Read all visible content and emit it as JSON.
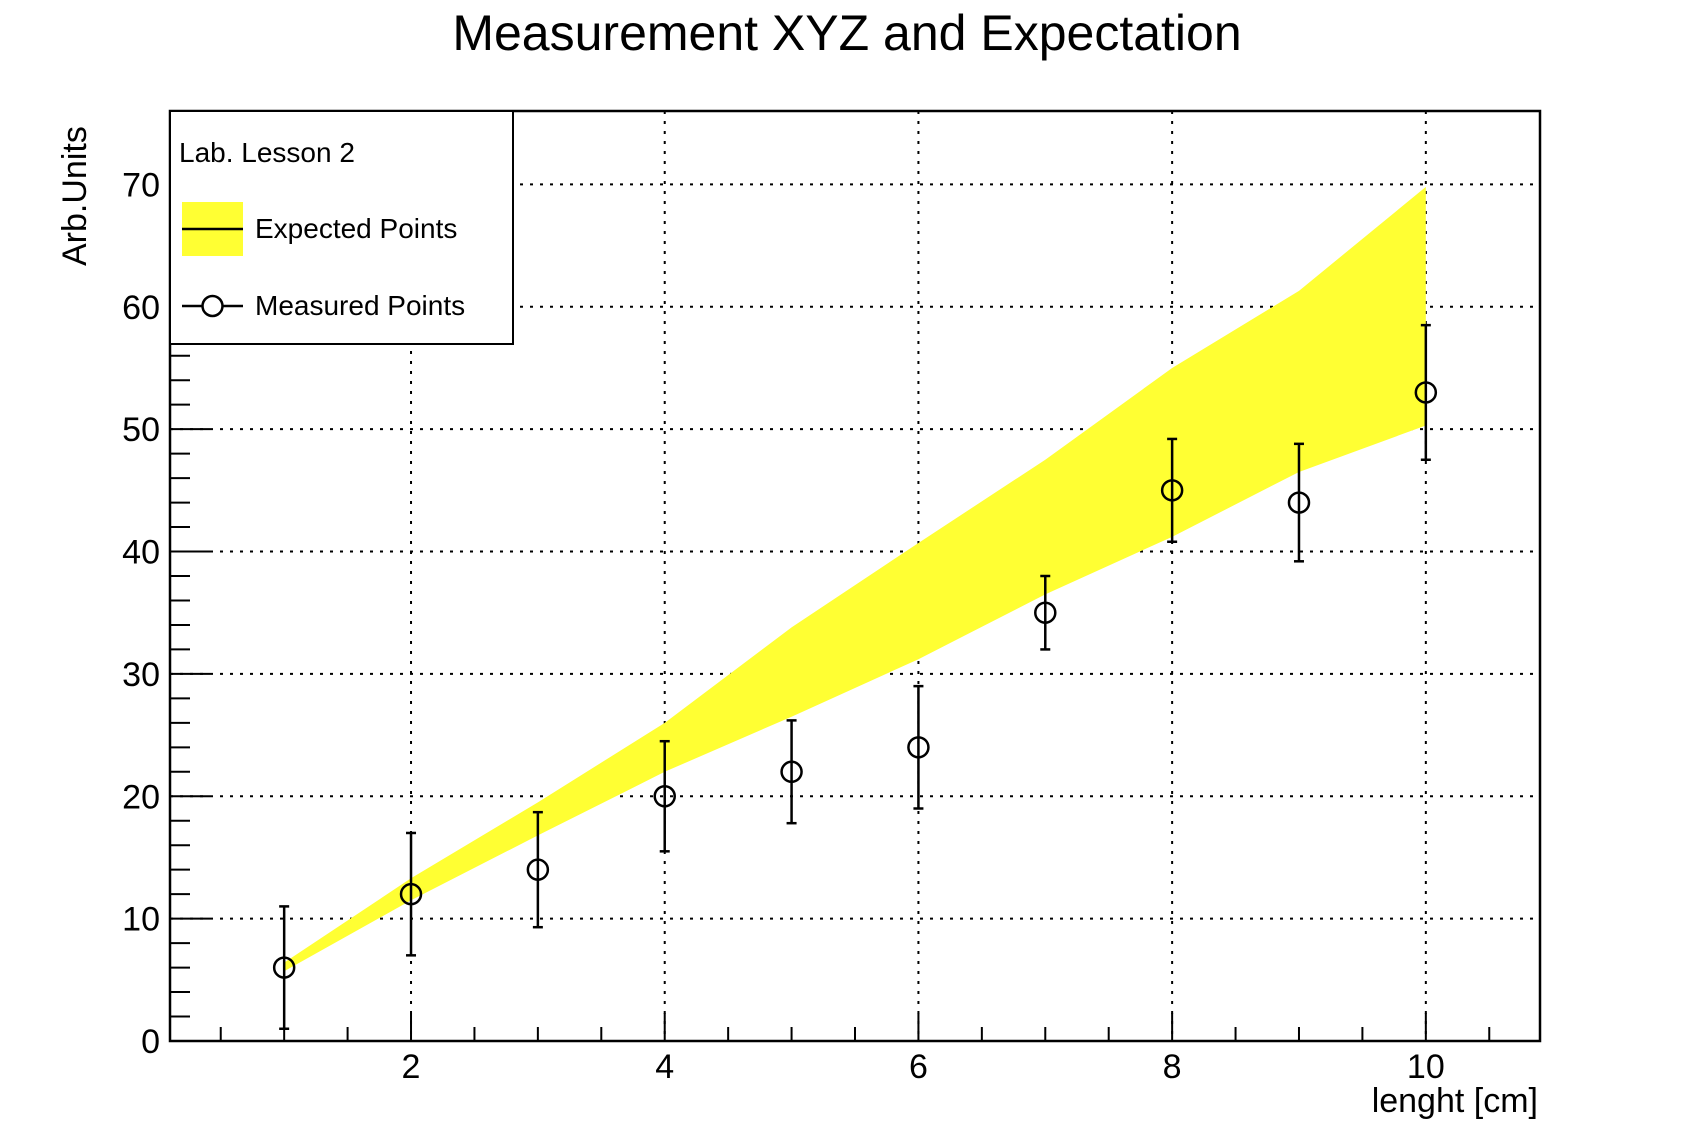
{
  "chart_data": {
    "type": "scatter",
    "title": "Measurement XYZ and Expectation",
    "xlabel": "lenght [cm]",
    "ylabel": "Arb.Units",
    "xlim": [
      0.1,
      10.9
    ],
    "ylim": [
      0,
      76
    ],
    "x_major_ticks": [
      2,
      4,
      6,
      8,
      10
    ],
    "x_minor_step": 0.5,
    "y_major_ticks": [
      0,
      10,
      20,
      30,
      40,
      50,
      60,
      70
    ],
    "y_minor_step": 2,
    "grid": true,
    "legend": {
      "placement": "top-left",
      "header": "Lab. Lesson 2",
      "entries": [
        "Expected Points",
        "Measured Points"
      ]
    },
    "series": [
      {
        "name": "Expected Points",
        "kind": "band",
        "color": "#ffff33",
        "x": [
          1,
          2,
          3,
          4,
          5,
          6,
          7,
          8,
          9,
          10
        ],
        "lower": [
          5.7,
          11.5,
          16.8,
          22.0,
          26.5,
          31.2,
          36.5,
          41.2,
          46.5,
          50.3
        ],
        "upper": [
          6.4,
          13.3,
          19.5,
          26.0,
          33.8,
          40.7,
          47.5,
          55.0,
          61.3,
          69.8
        ]
      },
      {
        "name": "Measured Points",
        "kind": "points",
        "marker": "open-circle",
        "x": [
          1,
          2,
          3,
          4,
          5,
          6,
          7,
          8,
          9,
          10
        ],
        "y": [
          6,
          12,
          14,
          20,
          22,
          24,
          35,
          45,
          44,
          53
        ],
        "yerr": [
          5,
          5,
          4.7,
          4.5,
          4.2,
          5,
          3,
          4.2,
          4.8,
          5.5
        ]
      }
    ]
  }
}
